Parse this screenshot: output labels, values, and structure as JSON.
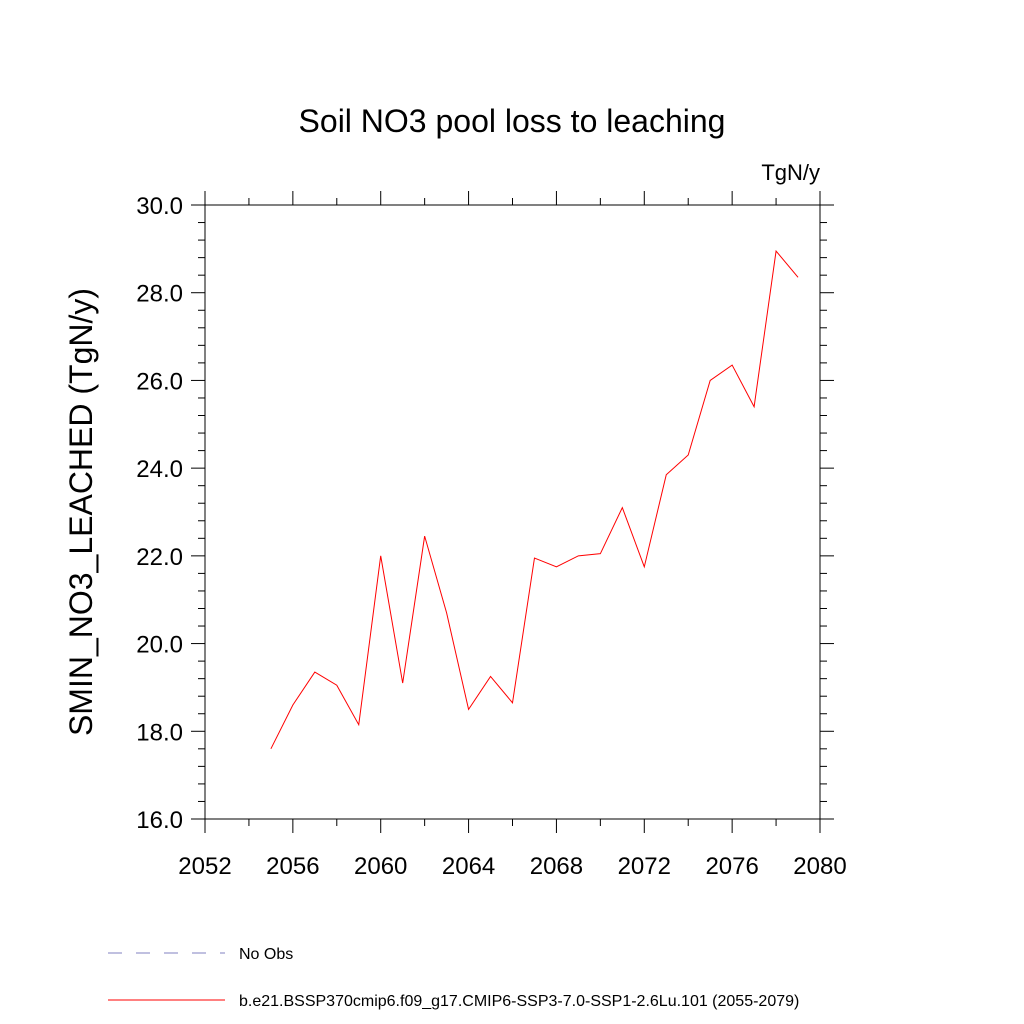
{
  "chart_data": {
    "type": "line",
    "title": "Soil NO3 pool loss to leaching",
    "units_label": "TgN/y",
    "ylabel": "SMIN_NO3_LEACHED  (TgN/y)",
    "xlabel": "",
    "xlim": [
      2052,
      2080
    ],
    "ylim": [
      16.0,
      30.0
    ],
    "x_major_ticks": [
      2052,
      2056,
      2060,
      2064,
      2068,
      2072,
      2076,
      2080
    ],
    "x_tick_labels": [
      "2052",
      "2056",
      "2060",
      "2064",
      "2068",
      "2072",
      "2076",
      "2080"
    ],
    "x_minor_step": 2,
    "y_major_ticks": [
      16.0,
      18.0,
      20.0,
      22.0,
      24.0,
      26.0,
      28.0,
      30.0
    ],
    "y_tick_labels": [
      "16.0",
      "18.0",
      "20.0",
      "22.0",
      "24.0",
      "26.0",
      "28.0",
      "30.0"
    ],
    "y_minor_step": 0.4,
    "grid": false,
    "legend_position": "bottom",
    "x": [
      2055,
      2056,
      2057,
      2058,
      2059,
      2060,
      2061,
      2062,
      2063,
      2064,
      2065,
      2066,
      2067,
      2068,
      2069,
      2070,
      2071,
      2072,
      2073,
      2074,
      2075,
      2076,
      2077,
      2078,
      2079
    ],
    "series": [
      {
        "name": "b.e21.BSSP370cmip6.f09_g17.CMIP6-SSP3-7.0-SSP1-2.6Lu.101 (2055-2079)",
        "color": "#ff0000",
        "dash": "solid",
        "values": [
          17.6,
          18.6,
          19.35,
          19.05,
          18.15,
          22.0,
          19.1,
          22.45,
          20.7,
          18.5,
          19.25,
          18.65,
          21.95,
          21.75,
          22.0,
          22.05,
          23.1,
          21.75,
          23.85,
          24.3,
          26.0,
          26.35,
          25.4,
          28.95,
          28.35
        ]
      }
    ],
    "legend": [
      {
        "label": "No Obs",
        "color": "#8080c0",
        "dash": "dashed"
      },
      {
        "label": "b.e21.BSSP370cmip6.f09_g17.CMIP6-SSP3-7.0-SSP1-2.6Lu.101 (2055-2079)",
        "color": "#ff0000",
        "dash": "solid"
      }
    ]
  }
}
